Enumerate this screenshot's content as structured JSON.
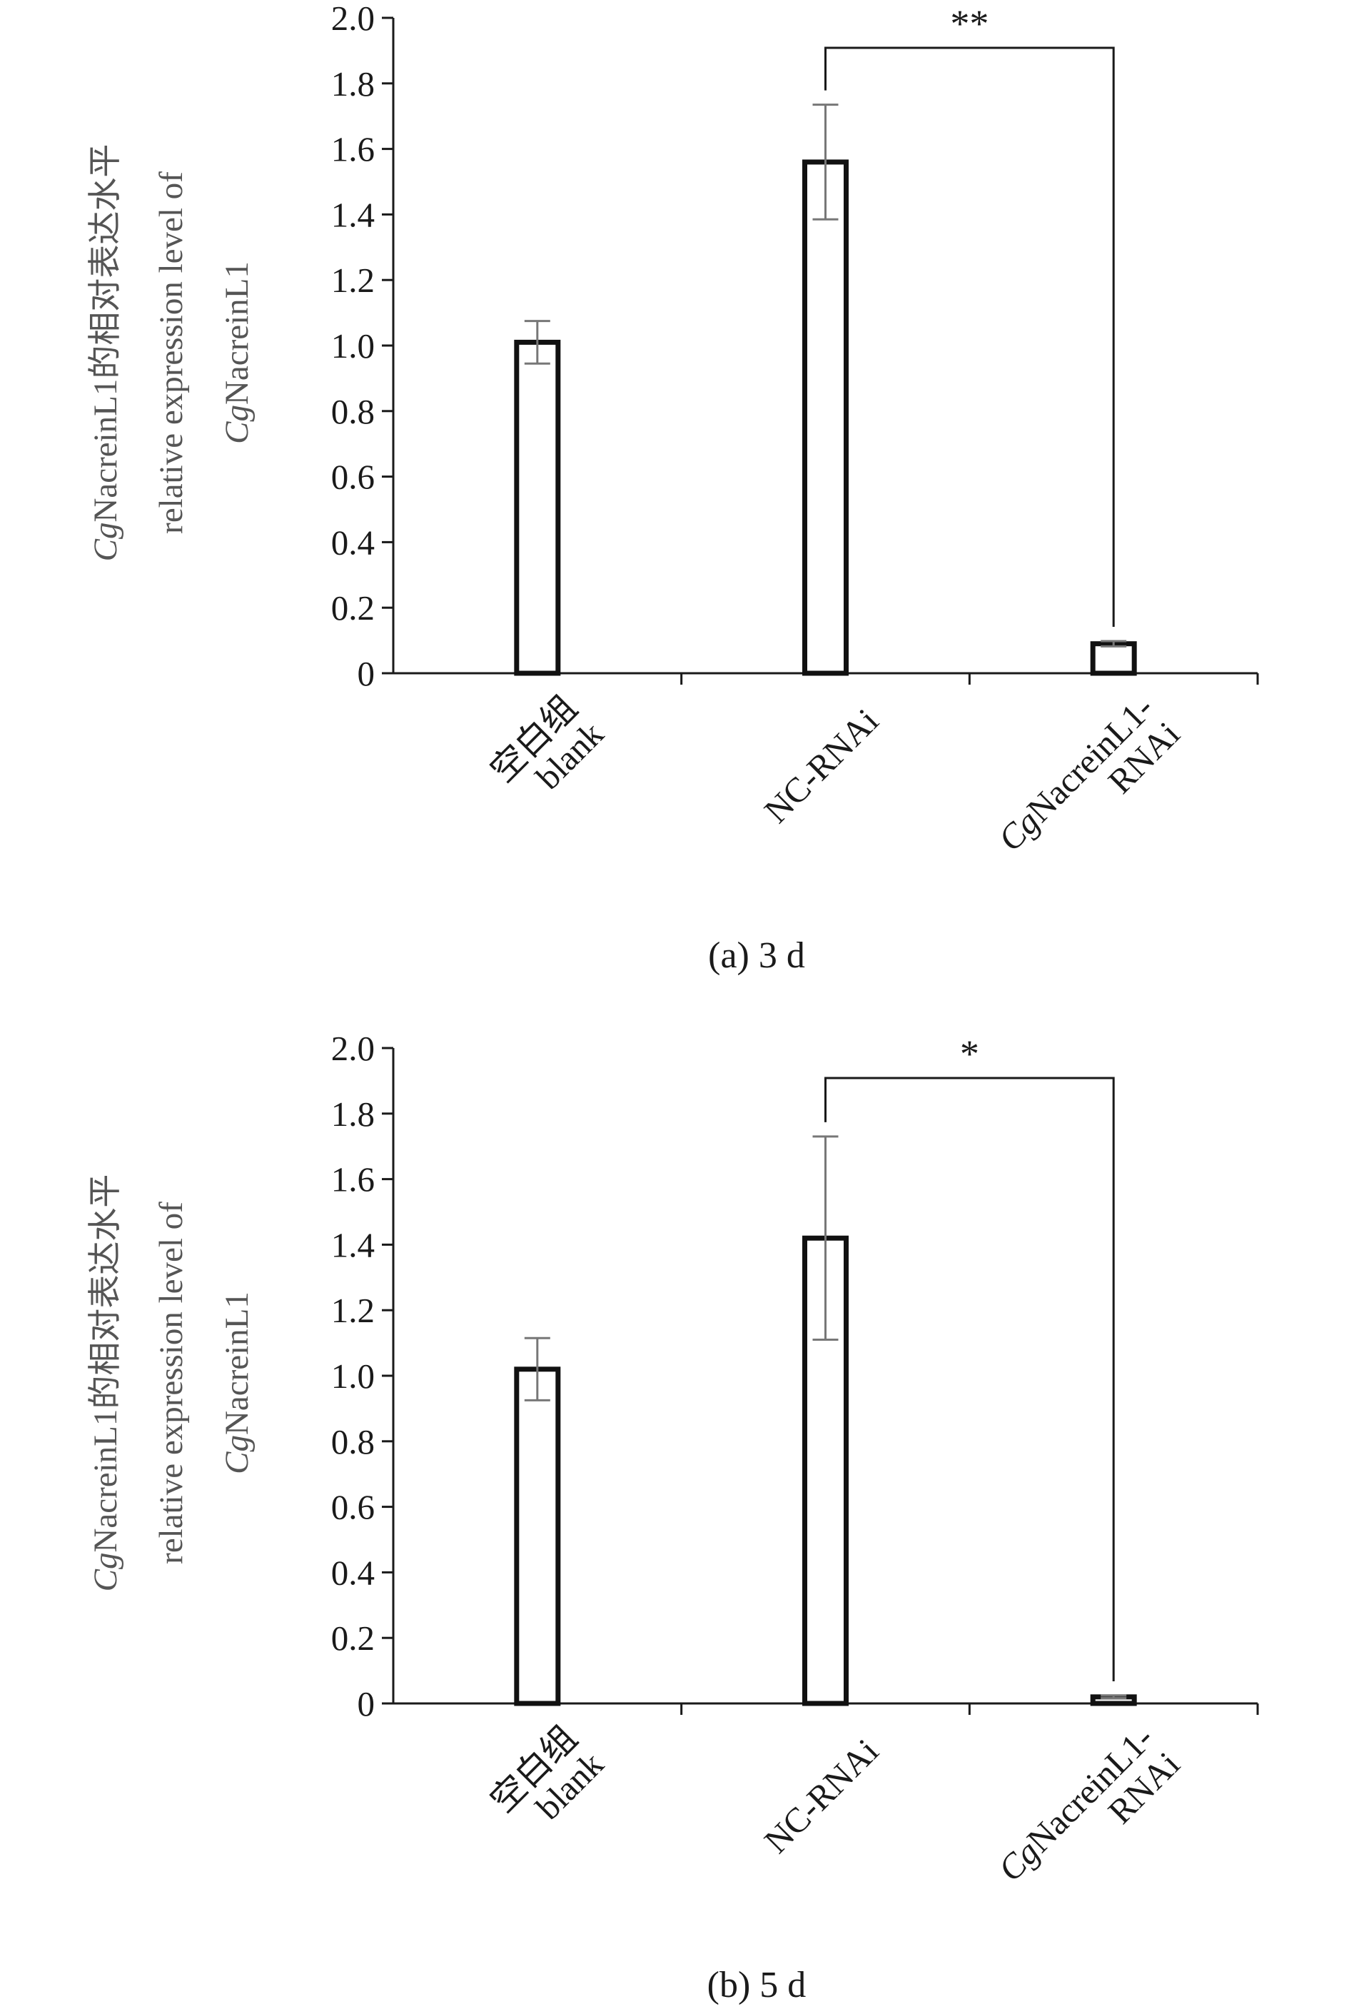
{
  "chart_data": [
    {
      "type": "bar",
      "panel": "a",
      "caption": "(a) 3 d",
      "ylabel_lines": [
        {
          "italic": "Cg",
          "text": "NacreinL1的相对表达水平"
        },
        {
          "italic": "",
          "text": "relative expression level of"
        },
        {
          "italic": "Cg",
          "text": "NacreinL1"
        }
      ],
      "categories": [
        {
          "lines": [
            "空白组",
            "blank"
          ]
        },
        {
          "lines": [
            "NC-RNAi"
          ]
        },
        {
          "lines": [
            "CgNacreinL1-",
            "RNAi"
          ]
        }
      ],
      "values": [
        1.01,
        1.56,
        0.09
      ],
      "errors": [
        0.065,
        0.175,
        0.008
      ],
      "ylim": [
        0,
        2.0
      ],
      "yticks": [
        "0",
        "0.2",
        "0.4",
        "0.6",
        "0.8",
        "1.0",
        "1.2",
        "1.4",
        "1.6",
        "1.8",
        "2.0"
      ],
      "significance": {
        "from": 1,
        "to": 2,
        "label": "**"
      }
    },
    {
      "type": "bar",
      "panel": "b",
      "caption": "(b) 5 d",
      "ylabel_lines": [
        {
          "italic": "Cg",
          "text": "NacreinL1的相对表达水平"
        },
        {
          "italic": "",
          "text": "relative expression level of"
        },
        {
          "italic": "Cg",
          "text": "NacreinL1"
        }
      ],
      "categories": [
        {
          "lines": [
            "空白组",
            "blank"
          ]
        },
        {
          "lines": [
            "NC-RNAi"
          ]
        },
        {
          "lines": [
            "CgNacreinL1-",
            "RNAi"
          ]
        }
      ],
      "values": [
        1.02,
        1.42,
        0.02
      ],
      "errors": [
        0.095,
        0.31,
        0.004
      ],
      "ylim": [
        0,
        2.0
      ],
      "yticks": [
        "0",
        "0.2",
        "0.4",
        "0.6",
        "0.8",
        "1.0",
        "1.2",
        "1.4",
        "1.6",
        "1.8",
        "2.0"
      ],
      "significance": {
        "from": 1,
        "to": 2,
        "label": "*"
      }
    }
  ]
}
